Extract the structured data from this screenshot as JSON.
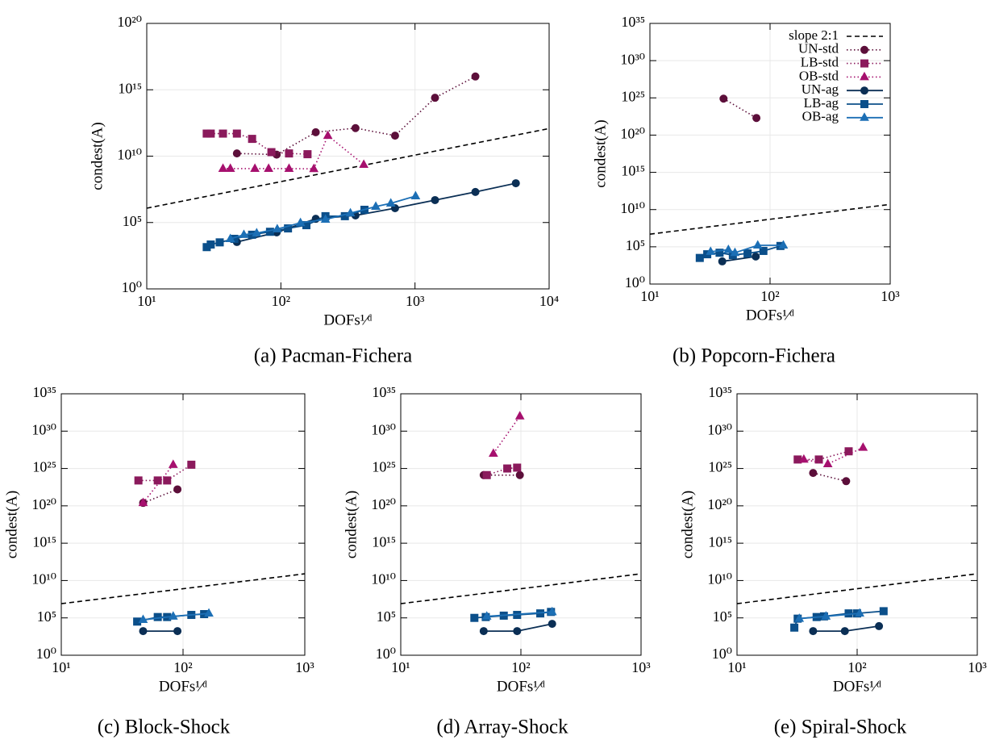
{
  "chart_data": [
    {
      "type": "line",
      "title": "(a) Pacman-Fichera",
      "xlabel": "DOFs¹⁄ᵈ",
      "ylabel": "condest(A)",
      "xscale": "log",
      "yscale": "log",
      "grid": true,
      "xlim": [
        10,
        10000
      ],
      "ylim": [
        1,
        1e+20
      ],
      "xticks": [
        {
          "value": 10,
          "label": "10¹"
        },
        {
          "value": 100,
          "label": "10²"
        },
        {
          "value": 1000,
          "label": "10³"
        },
        {
          "value": 10000,
          "label": "10⁴"
        }
      ],
      "yticks": [
        {
          "value": 1,
          "label": "10⁰"
        },
        {
          "value": 100000.0,
          "label": "10⁵"
        },
        {
          "value": 10000000000.0,
          "label": "10¹⁰"
        },
        {
          "value": 1000000000000000.0,
          "label": "10¹⁵"
        },
        {
          "value": 1e+20,
          "label": "10²⁰"
        }
      ],
      "series": [
        {
          "color": "#000000",
          "line": "dashed",
          "marker": "none",
          "x": [
            10,
            10000
          ],
          "values": [
            1200000.0,
            1200000000000.0
          ]
        },
        {
          "color": "#5c0f3a",
          "line": "dotted",
          "marker": "circle",
          "x": [
            47,
            93,
            182,
            360,
            710,
            1410,
            2820
          ],
          "values": [
            16000000000.0,
            13000000000.0,
            630000000000.0,
            1300000000000.0,
            350000000000.0,
            250000000000000.0,
            1e+16
          ]
        },
        {
          "color": "#8b1a5c",
          "line": "dotted",
          "marker": "square",
          "x": [
            28,
            30,
            37,
            47,
            61,
            85,
            115,
            158
          ],
          "values": [
            500000000000.0,
            500000000000.0,
            500000000000.0,
            500000000000.0,
            200000000000.0,
            20000000000.0,
            16000000000.0,
            14000000000.0
          ]
        },
        {
          "color": "#a6106e",
          "line": "dotted",
          "marker": "triangle",
          "x": [
            37,
            42,
            64,
            81,
            115,
            176,
            224,
            415
          ],
          "values": [
            1150000000.0,
            1150000000.0,
            1150000000.0,
            1150000000.0,
            1150000000.0,
            1100000000.0,
            350000000000.0,
            2300000000.0
          ]
        },
        {
          "color": "#0b2f55",
          "line": "solid",
          "marker": "circle",
          "x": [
            47,
            93,
            182,
            360,
            710,
            1410,
            2820,
            5650
          ],
          "values": [
            3400.0,
            18000.0,
            190000.0,
            340000.0,
            1200000.0,
            4900000.0,
            20000000.0,
            91000000.0
          ]
        },
        {
          "color": "#0b4f8a",
          "line": "solid",
          "marker": "square",
          "x": [
            28,
            30,
            35,
            45,
            61,
            83,
            113,
            155,
            215,
            300,
            420
          ],
          "values": [
            1400.0,
            2200.0,
            3200.0,
            5900.0,
            12000.0,
            20000.0,
            36000.0,
            63000.0,
            300000.0,
            300000.0,
            910000.0
          ]
        },
        {
          "color": "#1c6fb5",
          "line": "solid",
          "marker": "triangle",
          "x": [
            42,
            53,
            66,
            94,
            140,
            215,
            330,
            510,
            660,
            1010
          ],
          "values": [
            5900.0,
            12000.0,
            16000.0,
            32000.0,
            95000.0,
            170000.0,
            510000.0,
            1600000.0,
            2800000.0,
            9800000.0
          ]
        }
      ]
    },
    {
      "type": "line",
      "title": "(b) Popcorn-Fichera",
      "xlabel": "DOFs¹⁄ᵈ",
      "ylabel": "condest(A)",
      "xscale": "log",
      "yscale": "log",
      "grid": true,
      "legend": "top-right",
      "xlim": [
        10,
        1000
      ],
      "ylim": [
        1,
        1e+35
      ],
      "xticks": [
        {
          "value": 10,
          "label": "10¹"
        },
        {
          "value": 100,
          "label": "10²"
        },
        {
          "value": 1000,
          "label": "10³"
        }
      ],
      "yticks": [
        {
          "value": 1,
          "label": "10⁰"
        },
        {
          "value": 100000.0,
          "label": "10⁵"
        },
        {
          "value": 10000000000.0,
          "label": "10¹⁰"
        },
        {
          "value": 1000000000000000.0,
          "label": "10¹⁵"
        },
        {
          "value": 1e+20,
          "label": "10²⁰"
        },
        {
          "value": 1e+25,
          "label": "10²⁵"
        },
        {
          "value": 1e+30,
          "label": "10³⁰"
        },
        {
          "value": 1e+35,
          "label": "10³⁵"
        }
      ],
      "series": [
        {
          "name": "slope 2:1",
          "color": "#000000",
          "line": "dashed",
          "marker": "none",
          "x": [
            10,
            1000
          ],
          "values": [
            5000000.0,
            50000000000.0
          ]
        },
        {
          "name": "UN-std",
          "color": "#5c0f3a",
          "line": "dotted",
          "marker": "circle",
          "x": [
            41,
            77
          ],
          "values": [
            7.9e+24,
            2e+22
          ]
        },
        {
          "name": "LB-std",
          "color": "#8b1a5c",
          "line": "dotted",
          "marker": "square",
          "x": [],
          "values": []
        },
        {
          "name": "OB-std",
          "color": "#a6106e",
          "line": "dotted",
          "marker": "triangle",
          "x": [],
          "values": []
        },
        {
          "name": "UN-ag",
          "color": "#0b2f55",
          "line": "solid",
          "marker": "circle",
          "x": [
            40,
            76
          ],
          "values": [
            1100.0,
            5000.0
          ]
        },
        {
          "name": "LB-ag",
          "color": "#0b4f8a",
          "line": "solid",
          "marker": "square",
          "x": [
            26,
            30,
            38,
            49,
            65,
            88,
            122
          ],
          "values": [
            3200.0,
            10000.0,
            16000.0,
            7900.0,
            13000.0,
            28000.0,
            130000.0
          ]
        },
        {
          "name": "OB-ag",
          "color": "#1c6fb5",
          "line": "solid",
          "marker": "triangle",
          "x": [
            32,
            45,
            51,
            79,
            129
          ],
          "values": [
            22000.0,
            40000.0,
            16000.0,
            160000.0,
            160000.0
          ]
        }
      ]
    },
    {
      "type": "line",
      "title": "(c) Block-Shock",
      "xlabel": "DOFs¹⁄ᵈ",
      "ylabel": "condest(A)",
      "xscale": "log",
      "yscale": "log",
      "grid": true,
      "xlim": [
        10,
        1000
      ],
      "ylim": [
        1,
        1e+35
      ],
      "xticks": [
        {
          "value": 10,
          "label": "10¹"
        },
        {
          "value": 100,
          "label": "10²"
        },
        {
          "value": 1000,
          "label": "10³"
        }
      ],
      "yticks": [
        {
          "value": 1,
          "label": "10⁰"
        },
        {
          "value": 100000.0,
          "label": "10⁵"
        },
        {
          "value": 10000000000.0,
          "label": "10¹⁰"
        },
        {
          "value": 1000000000000000.0,
          "label": "10¹⁵"
        },
        {
          "value": 1e+20,
          "label": "10²⁰"
        },
        {
          "value": 1e+25,
          "label": "10²⁵"
        },
        {
          "value": 1e+30,
          "label": "10³⁰"
        },
        {
          "value": 1e+35,
          "label": "10³⁵"
        }
      ],
      "series": [
        {
          "color": "#000000",
          "line": "dashed",
          "marker": "none",
          "x": [
            10,
            1000
          ],
          "values": [
            8000000.0,
            80000000000.0
          ]
        },
        {
          "color": "#5c0f3a",
          "line": "dotted",
          "marker": "circle",
          "x": [
            47,
            90
          ],
          "values": [
            2.5e+20,
            1.6e+22
          ]
        },
        {
          "color": "#8b1a5c",
          "line": "dotted",
          "marker": "square",
          "x": [
            43,
            62,
            74,
            117
          ],
          "values": [
            2.5e+23,
            2.5e+23,
            2.5e+23,
            3.2e+25
          ]
        },
        {
          "color": "#a6106e",
          "line": "dotted",
          "marker": "triangle",
          "x": [
            47,
            83
          ],
          "values": [
            2.5e+20,
            3.2e+25
          ]
        },
        {
          "color": "#0b2f55",
          "line": "solid",
          "marker": "circle",
          "x": [
            47,
            90
          ],
          "values": [
            1700.0,
            1700.0
          ]
        },
        {
          "color": "#0b4f8a",
          "line": "solid",
          "marker": "square",
          "x": [
            42,
            62,
            74,
            117,
            149
          ],
          "values": [
            32000.0,
            130000.0,
            130000.0,
            250000.0,
            320000.0
          ]
        },
        {
          "color": "#1c6fb5",
          "line": "solid",
          "marker": "triangle",
          "x": [
            47,
            83,
            163
          ],
          "values": [
            56000.0,
            160000.0,
            400000.0
          ]
        }
      ]
    },
    {
      "type": "line",
      "title": "(d) Array-Shock",
      "xlabel": "DOFs¹⁄ᵈ",
      "ylabel": "condest(A)",
      "xscale": "log",
      "yscale": "log",
      "grid": true,
      "xlim": [
        10,
        1000
      ],
      "ylim": [
        1,
        1e+35
      ],
      "xticks": [
        {
          "value": 10,
          "label": "10¹"
        },
        {
          "value": 100,
          "label": "10²"
        },
        {
          "value": 1000,
          "label": "10³"
        }
      ],
      "yticks": [
        {
          "value": 1,
          "label": "10⁰"
        },
        {
          "value": 100000.0,
          "label": "10⁵"
        },
        {
          "value": 10000000000.0,
          "label": "10¹⁰"
        },
        {
          "value": 1000000000000000.0,
          "label": "10¹⁵"
        },
        {
          "value": 1e+20,
          "label": "10²⁰"
        },
        {
          "value": 1e+25,
          "label": "10²⁵"
        },
        {
          "value": 1e+30,
          "label": "10³⁰"
        },
        {
          "value": 1e+35,
          "label": "10³⁵"
        }
      ],
      "series": [
        {
          "color": "#000000",
          "line": "dashed",
          "marker": "none",
          "x": [
            10,
            1000
          ],
          "values": [
            8000000.0,
            80000000000.0
          ]
        },
        {
          "color": "#5c0f3a",
          "line": "dotted",
          "marker": "circle",
          "x": [
            49,
            98
          ],
          "values": [
            1.3e+24,
            1.3e+24
          ]
        },
        {
          "color": "#8b1a5c",
          "line": "dotted",
          "marker": "square",
          "x": [
            52,
            77,
            93
          ],
          "values": [
            1.3e+24,
            1e+25,
            1.3e+25
          ]
        },
        {
          "color": "#a6106e",
          "line": "dotted",
          "marker": "triangle",
          "x": [
            59,
            98
          ],
          "values": [
            1e+27,
            1e+32
          ]
        },
        {
          "color": "#0b2f55",
          "line": "solid",
          "marker": "circle",
          "x": [
            49,
            93,
            182
          ],
          "values": [
            1700.0,
            1700.0,
            16000.0
          ]
        },
        {
          "color": "#0b4f8a",
          "line": "solid",
          "marker": "square",
          "x": [
            41,
            51,
            72,
            93,
            145,
            178
          ],
          "values": [
            100000.0,
            130000.0,
            200000.0,
            250000.0,
            400000.0,
            630000.0
          ]
        },
        {
          "color": "#1c6fb5",
          "line": "solid",
          "marker": "triangle",
          "x": [
            52,
            182
          ],
          "values": [
            160000.0,
            630000.0
          ]
        }
      ]
    },
    {
      "type": "line",
      "title": "(e) Spiral-Shock",
      "xlabel": "DOFs¹⁄ᵈ",
      "ylabel": "condest(A)",
      "xscale": "log",
      "yscale": "log",
      "grid": true,
      "xlim": [
        10,
        1000
      ],
      "ylim": [
        1,
        1e+35
      ],
      "xticks": [
        {
          "value": 10,
          "label": "10¹"
        },
        {
          "value": 100,
          "label": "10²"
        },
        {
          "value": 1000,
          "label": "10³"
        }
      ],
      "yticks": [
        {
          "value": 1,
          "label": "10⁰"
        },
        {
          "value": 100000.0,
          "label": "10⁵"
        },
        {
          "value": 10000000000.0,
          "label": "10¹⁰"
        },
        {
          "value": 1000000000000000.0,
          "label": "10¹⁵"
        },
        {
          "value": 1e+20,
          "label": "10²⁰"
        },
        {
          "value": 1e+25,
          "label": "10²⁵"
        },
        {
          "value": 1e+30,
          "label": "10³⁰"
        },
        {
          "value": 1e+35,
          "label": "10³⁵"
        }
      ],
      "series": [
        {
          "color": "#000000",
          "line": "dashed",
          "marker": "none",
          "x": [
            10,
            1000
          ],
          "values": [
            8000000.0,
            80000000000.0
          ]
        },
        {
          "color": "#5c0f3a",
          "line": "dotted",
          "marker": "circle",
          "x": [
            43,
            81
          ],
          "values": [
            2.5e+24,
            2e+23
          ]
        },
        {
          "color": "#8b1a5c",
          "line": "dotted",
          "marker": "square",
          "x": [
            32,
            48,
            85
          ],
          "values": [
            1.6e+26,
            1.6e+26,
            2e+27
          ]
        },
        {
          "color": "#a6106e",
          "line": "dotted",
          "marker": "triangle",
          "x": [
            36,
            57,
            112
          ],
          "values": [
            1.6e+26,
            4e+25,
            6.3e+27
          ]
        },
        {
          "color": "#0b2f55",
          "line": "solid",
          "marker": "circle",
          "x": [
            43,
            79,
            152
          ],
          "values": [
            1700.0,
            1700.0,
            7900.0
          ]
        },
        {
          "color": "#0b4f8a",
          "line": "solid",
          "marker": "square",
          "x": [
            30,
            32,
            46,
            53,
            85,
            100,
            166
          ],
          "values": [
            5000.0,
            79000.0,
            130000.0,
            160000.0,
            400000.0,
            400000.0,
            790000.0
          ]
        },
        {
          "color": "#1c6fb5",
          "line": "solid",
          "marker": "triangle",
          "x": [
            33,
            55,
            105
          ],
          "values": [
            79000.0,
            160000.0,
            400000.0
          ]
        }
      ]
    }
  ]
}
